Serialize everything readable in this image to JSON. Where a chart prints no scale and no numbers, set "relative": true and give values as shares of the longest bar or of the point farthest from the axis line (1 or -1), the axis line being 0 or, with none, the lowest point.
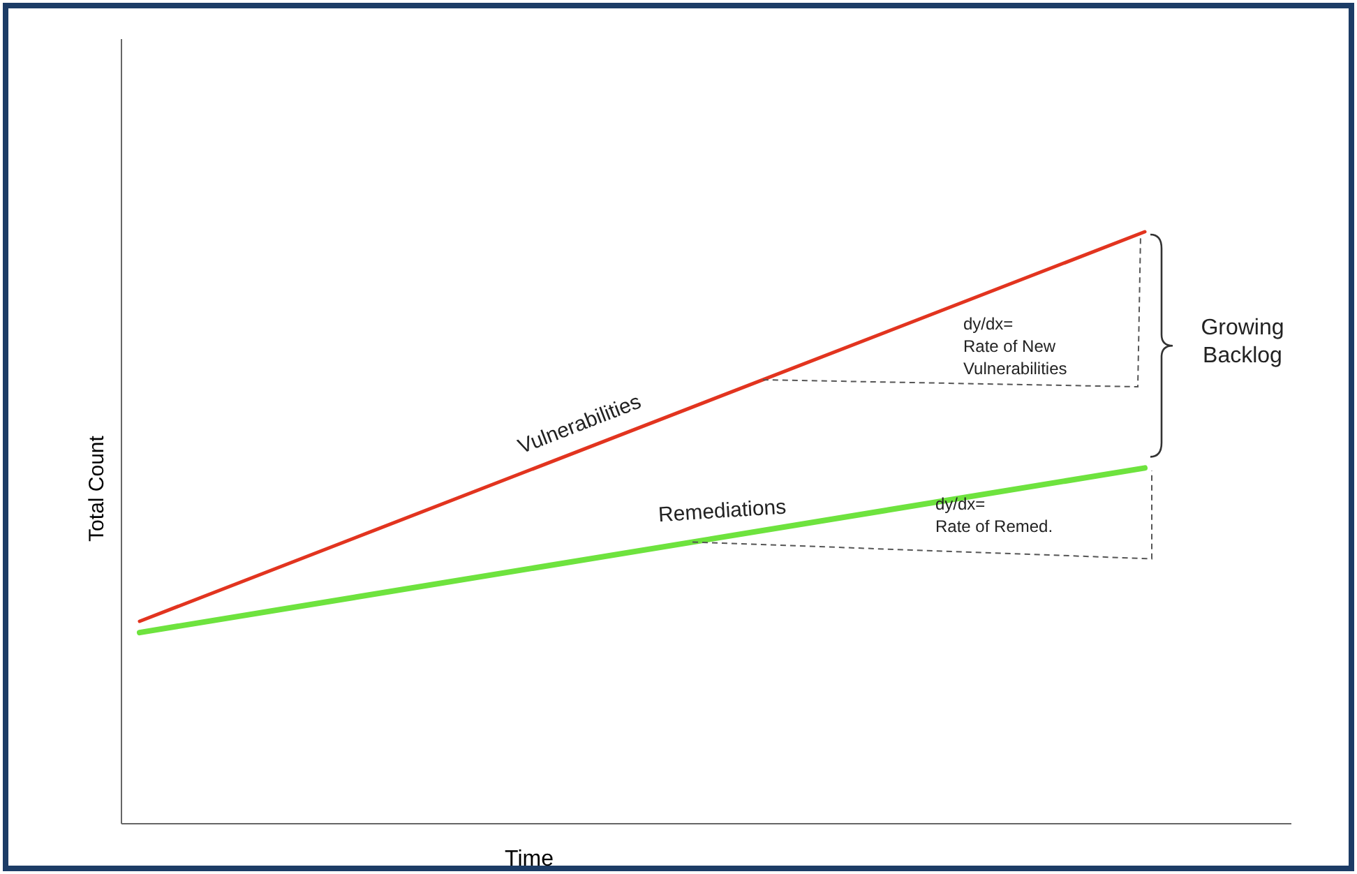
{
  "chart_data": {
    "type": "line",
    "relative": true,
    "xlabel": "Time",
    "ylabel": "Total Count",
    "categories": [
      null,
      null
    ],
    "legend": false,
    "series": [
      {
        "name": "Vulnerabilities",
        "color": "#e2341f",
        "values": [
          0.342,
          1
        ]
      },
      {
        "name": "Remediations",
        "color": "#6ee33e",
        "values": [
          0.323,
          0.601
        ]
      }
    ],
    "annotations": [
      "dy/dx=\nRate of New\nVulnerabilities",
      "dy/dx=\nRate of Remed.",
      "Growing\nBacklog"
    ]
  }
}
